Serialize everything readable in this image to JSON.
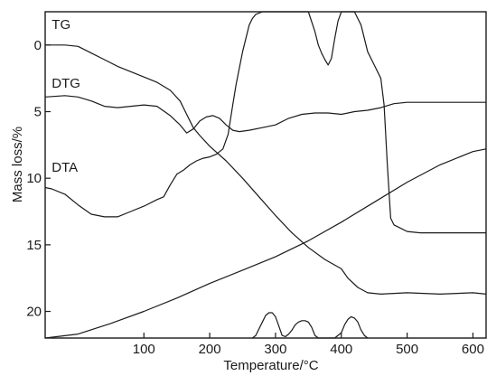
{
  "chart_data": {
    "type": "line",
    "xlabel": "Temperature/°C",
    "ylabel": "Mass loss/%",
    "xlim": [
      -50,
      620
    ],
    "ylim": [
      22,
      -2.5
    ],
    "grid": false,
    "x_ticks": [
      100,
      200,
      300,
      400,
      500,
      600
    ],
    "y_ticks": [
      0,
      5,
      10,
      15,
      20
    ],
    "series": [
      {
        "name": "TG",
        "label_at": [
          -40,
          -1.2
        ],
        "x": [
          -50,
          -40,
          -20,
          0,
          20,
          40,
          60,
          80,
          100,
          120,
          140,
          155,
          165,
          175,
          185,
          200,
          225,
          250,
          275,
          300,
          325,
          350,
          375,
          400,
          410,
          425,
          440,
          460,
          500,
          550,
          600,
          620
        ],
        "y": [
          0.0,
          0.0,
          0.0,
          0.1,
          0.6,
          1.1,
          1.6,
          2.0,
          2.4,
          2.8,
          3.4,
          4.2,
          5.2,
          6.2,
          6.8,
          7.6,
          8.7,
          10.0,
          11.4,
          12.8,
          14.1,
          15.2,
          16.1,
          16.8,
          17.5,
          18.2,
          18.6,
          18.7,
          18.6,
          18.7,
          18.6,
          18.7
        ]
      },
      {
        "name": "DTG",
        "label_at": [
          -40,
          3.2
        ],
        "x": [
          -50,
          -20,
          0,
          20,
          40,
          60,
          80,
          100,
          120,
          140,
          155,
          165,
          175,
          185,
          195,
          205,
          215,
          225,
          235,
          245,
          260,
          280,
          300,
          320,
          340,
          360,
          380,
          400,
          420,
          440,
          460,
          480,
          500,
          550,
          600,
          620
        ],
        "y": [
          3.9,
          3.8,
          3.9,
          4.2,
          4.6,
          4.7,
          4.6,
          4.5,
          4.6,
          5.3,
          6.0,
          6.6,
          6.3,
          5.7,
          5.4,
          5.3,
          5.5,
          6.0,
          6.4,
          6.5,
          6.4,
          6.2,
          6.0,
          5.5,
          5.2,
          5.1,
          5.1,
          5.2,
          5.0,
          4.9,
          4.7,
          4.4,
          4.3,
          4.3,
          4.3,
          4.3
        ]
      },
      {
        "name": "DTA",
        "label_at": [
          -40,
          9.5
        ],
        "x": [
          -50,
          -40,
          -20,
          0,
          20,
          40,
          60,
          80,
          100,
          120,
          130,
          140,
          150,
          160,
          170,
          180,
          190,
          200,
          210,
          220,
          228,
          235,
          240,
          250,
          260,
          265,
          270,
          280,
          300,
          320,
          340,
          350,
          360,
          365,
          370,
          375,
          380,
          385,
          390,
          395,
          400,
          410,
          420,
          430,
          440,
          450,
          460,
          465,
          470,
          475,
          480,
          500,
          520,
          550,
          600,
          620
        ],
        "y": [
          10.7,
          10.8,
          11.2,
          12.0,
          12.7,
          12.9,
          12.9,
          12.5,
          12.1,
          11.6,
          11.4,
          10.5,
          9.7,
          9.4,
          9.0,
          8.7,
          8.5,
          8.4,
          8.2,
          7.8,
          6.7,
          4.5,
          3.0,
          0.5,
          -1.5,
          -2.0,
          -2.3,
          -2.5,
          -2.5,
          -2.5,
          -2.5,
          -2.5,
          -1.0,
          0.0,
          0.6,
          1.1,
          1.5,
          1.0,
          -0.5,
          -1.8,
          -2.5,
          -2.5,
          -2.5,
          -1.5,
          0.5,
          1.5,
          2.5,
          4.5,
          9.0,
          13.0,
          13.5,
          14.0,
          14.1,
          14.1,
          14.1,
          14.1
        ]
      },
      {
        "name": "",
        "x": [
          -50,
          0,
          50,
          100,
          150,
          200,
          250,
          300,
          350,
          400,
          450,
          500,
          550,
          600,
          620
        ],
        "y": [
          22.0,
          21.7,
          20.9,
          20.0,
          19.0,
          17.9,
          16.9,
          15.9,
          14.7,
          13.3,
          11.8,
          10.3,
          9.0,
          8.0,
          7.8
        ]
      },
      {
        "name": "",
        "x": [
          265,
          270,
          275,
          280,
          285,
          290,
          295,
          300,
          305,
          310,
          315,
          320,
          325,
          330,
          335,
          340,
          345,
          350,
          355,
          360,
          365,
          370,
          375,
          380,
          390,
          400,
          405,
          410,
          415,
          420,
          425,
          430,
          435,
          440
        ],
        "y": [
          22.0,
          21.8,
          21.3,
          20.8,
          20.3,
          20.1,
          20.1,
          20.4,
          21.1,
          21.8,
          21.9,
          21.7,
          21.4,
          21.0,
          20.8,
          20.7,
          20.7,
          20.8,
          21.2,
          21.8,
          22.0,
          22.0,
          22.0,
          22.0,
          22.0,
          21.6,
          21.0,
          20.6,
          20.4,
          20.5,
          20.8,
          21.4,
          21.8,
          22.0
        ]
      }
    ]
  }
}
